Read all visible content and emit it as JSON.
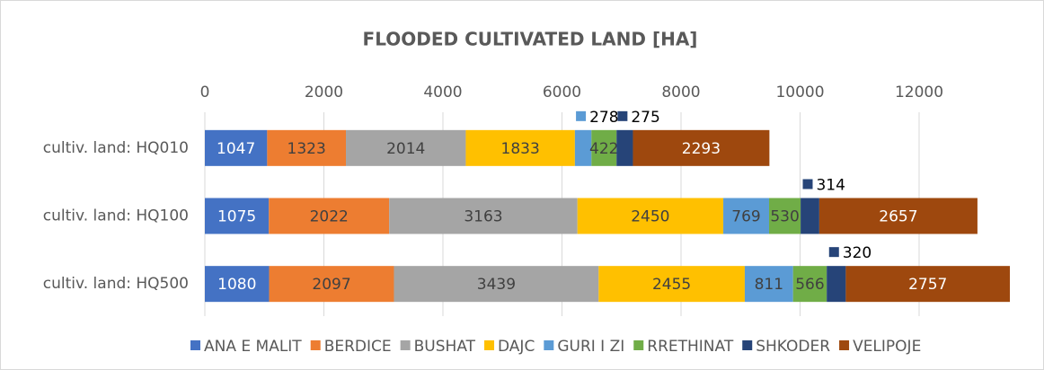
{
  "chart_data": {
    "type": "stacked_barh",
    "title": "FLOODED CULTIVATED LAND [HA]",
    "categories": [
      "cultiv. land: HQ010",
      "cultiv. land: HQ100",
      "cultiv. land: HQ500"
    ],
    "series": [
      {
        "name": "ANA E MALIT",
        "color": "#4472c4",
        "values": [
          1047,
          1075,
          1080
        ]
      },
      {
        "name": "BERDICE",
        "color": "#ed7d31",
        "values": [
          1323,
          2022,
          2097
        ]
      },
      {
        "name": "BUSHAT",
        "color": "#a5a5a5",
        "values": [
          2014,
          3163,
          3439
        ]
      },
      {
        "name": "DAJC",
        "color": "#ffc000",
        "values": [
          1833,
          2450,
          2455
        ]
      },
      {
        "name": "GURI I ZI",
        "color": "#5b9bd5",
        "values": [
          278,
          769,
          811
        ]
      },
      {
        "name": "RRETHINAT",
        "color": "#70ad47",
        "values": [
          422,
          530,
          566
        ]
      },
      {
        "name": "SHKODER",
        "color": "#264478",
        "values": [
          275,
          314,
          320
        ]
      },
      {
        "name": "VELIPOJE",
        "color": "#9e480e",
        "values": [
          2293,
          2657,
          2757
        ]
      }
    ],
    "xlim": [
      0,
      14000
    ],
    "xticks": [
      0,
      2000,
      4000,
      6000,
      8000,
      10000,
      12000
    ],
    "grid": true,
    "legend": "bottom"
  }
}
